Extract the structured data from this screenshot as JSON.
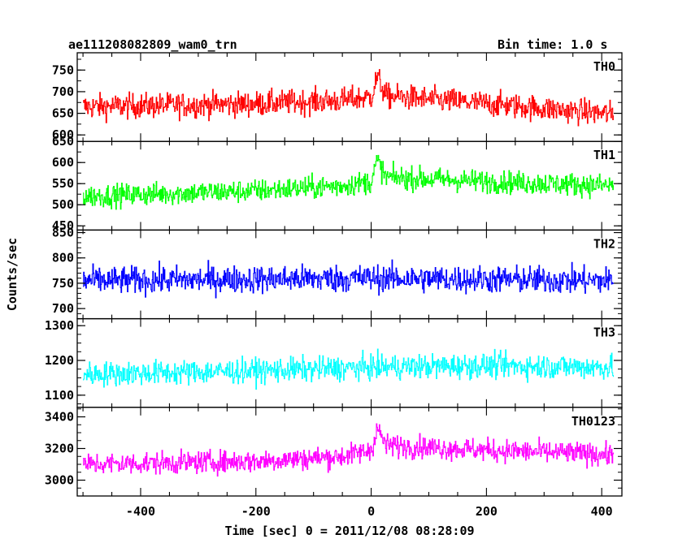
{
  "header": {
    "title": "ae111208082809_wam0_trn",
    "bin_time": "Bin time: 1.0 s"
  },
  "chart_data": {
    "type": "line",
    "xlabel": "Time [sec] 0 = 2011/12/08 08:28:09",
    "ylabel": "Counts/sec",
    "xlim": [
      -510,
      435
    ],
    "xticks": [
      -400,
      -200,
      0,
      200,
      400
    ],
    "bin_time_s": 1.0,
    "panels": [
      {
        "name": "TH0",
        "color": "#ff0000",
        "ylim": [
          585,
          790
        ],
        "yticks": [
          600,
          650,
          700,
          750
        ],
        "baseline": [
          [
            -500,
            665
          ],
          [
            -200,
            672
          ],
          [
            -50,
            680
          ],
          [
            0,
            688
          ],
          [
            10,
            735
          ],
          [
            25,
            690
          ],
          [
            200,
            672
          ],
          [
            420,
            648
          ]
        ],
        "noise": 45
      },
      {
        "name": "TH1",
        "color": "#00ff00",
        "ylim": [
          440,
          650
        ],
        "yticks": [
          450,
          500,
          550,
          600,
          650
        ],
        "baseline": [
          [
            -500,
            520
          ],
          [
            -200,
            533
          ],
          [
            -50,
            545
          ],
          [
            0,
            555
          ],
          [
            10,
            605
          ],
          [
            25,
            565
          ],
          [
            200,
            555
          ],
          [
            420,
            545
          ]
        ],
        "noise": 42
      },
      {
        "name": "TH2",
        "color": "#0000ff",
        "ylim": [
          680,
          855
        ],
        "yticks": [
          700,
          750,
          800,
          850
        ],
        "baseline": [
          [
            -500,
            755
          ],
          [
            0,
            760
          ],
          [
            420,
            755
          ]
        ],
        "noise": 42
      },
      {
        "name": "TH3",
        "color": "#00ffff",
        "ylim": [
          1065,
          1320
        ],
        "yticks": [
          1100,
          1200,
          1300
        ],
        "baseline": [
          [
            -500,
            1160
          ],
          [
            -200,
            1170
          ],
          [
            0,
            1180
          ],
          [
            200,
            1185
          ],
          [
            420,
            1180
          ]
        ],
        "noise": 55
      },
      {
        "name": "TH0123",
        "color": "#ff00ff",
        "ylim": [
          2900,
          3460
        ],
        "yticks": [
          3000,
          3200,
          3400
        ],
        "baseline": [
          [
            -500,
            3100
          ],
          [
            -200,
            3120
          ],
          [
            -50,
            3150
          ],
          [
            0,
            3190
          ],
          [
            10,
            3330
          ],
          [
            25,
            3220
          ],
          [
            200,
            3190
          ],
          [
            420,
            3160
          ]
        ],
        "noise": 110
      }
    ]
  }
}
